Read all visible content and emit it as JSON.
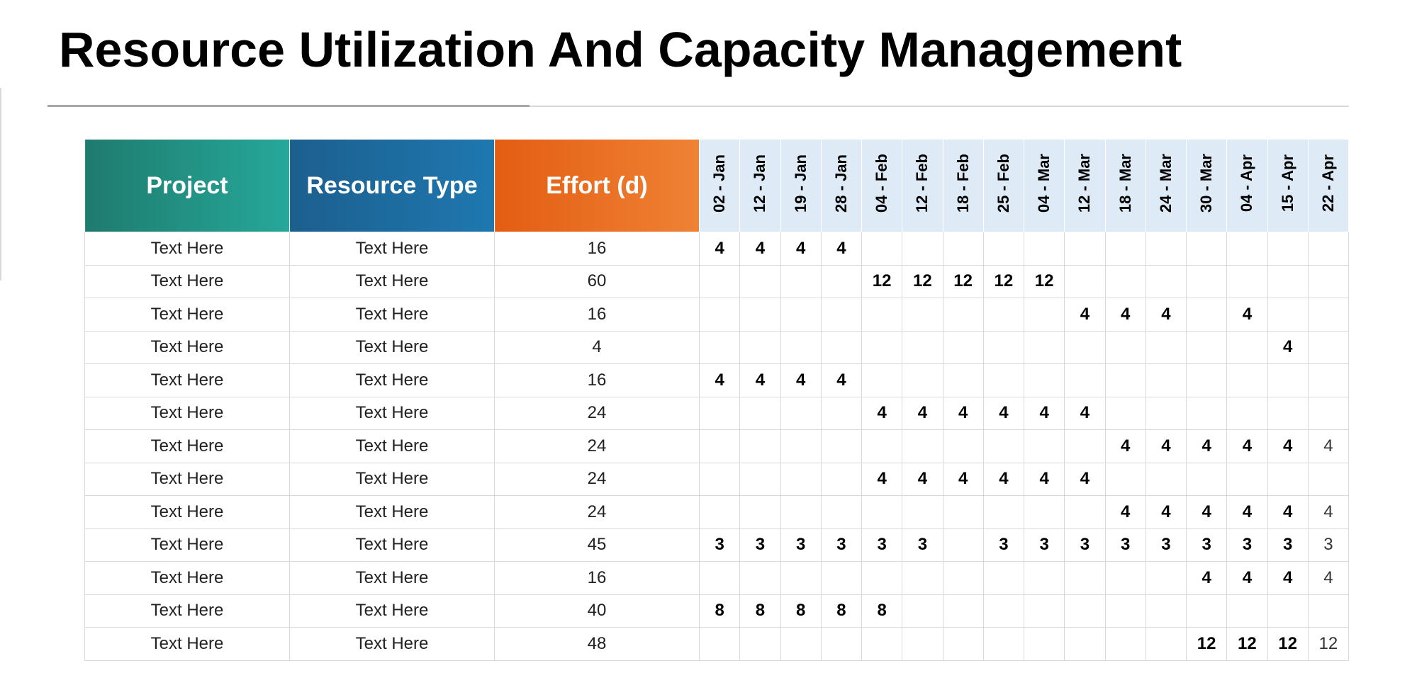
{
  "title": "Resource Utilization And Capacity Management",
  "table": {
    "headers": {
      "project": "Project",
      "resource_type": "Resource Type",
      "effort": "Effort (d)",
      "weeks": [
        "02 - Jan",
        "12 - Jan",
        "19 - Jan",
        "28 - Jan",
        "04 - Feb",
        "12 - Feb",
        "18 - Feb",
        "25 - Feb",
        "04 - Mar",
        "12 - Mar",
        "18 - Mar",
        "24 - Mar",
        "30 - Mar",
        "04 - Apr",
        "15 - Apr",
        "22 - Apr"
      ]
    },
    "rows": [
      {
        "project": "Text Here",
        "resource_type": "Text Here",
        "effort": 16,
        "weeks": [
          4,
          4,
          4,
          4,
          null,
          null,
          null,
          null,
          null,
          null,
          null,
          null,
          null,
          null,
          null,
          null
        ]
      },
      {
        "project": "Text Here",
        "resource_type": "Text Here",
        "effort": 60,
        "weeks": [
          null,
          null,
          null,
          null,
          12,
          12,
          12,
          12,
          12,
          null,
          null,
          null,
          null,
          null,
          null,
          null
        ]
      },
      {
        "project": "Text Here",
        "resource_type": "Text Here",
        "effort": 16,
        "weeks": [
          null,
          null,
          null,
          null,
          null,
          null,
          null,
          null,
          null,
          4,
          4,
          4,
          null,
          4,
          null,
          null
        ]
      },
      {
        "project": "Text Here",
        "resource_type": "Text Here",
        "effort": 4,
        "weeks": [
          null,
          null,
          null,
          null,
          null,
          null,
          null,
          null,
          null,
          null,
          null,
          null,
          null,
          null,
          4,
          null
        ]
      },
      {
        "project": "Text Here",
        "resource_type": "Text Here",
        "effort": 16,
        "weeks": [
          4,
          4,
          4,
          4,
          null,
          null,
          null,
          null,
          null,
          null,
          null,
          null,
          null,
          null,
          null,
          null
        ]
      },
      {
        "project": "Text Here",
        "resource_type": "Text Here",
        "effort": 24,
        "weeks": [
          null,
          null,
          null,
          null,
          4,
          4,
          4,
          4,
          4,
          4,
          null,
          null,
          null,
          null,
          null,
          null
        ]
      },
      {
        "project": "Text Here",
        "resource_type": "Text Here",
        "effort": 24,
        "weeks": [
          null,
          null,
          null,
          null,
          null,
          null,
          null,
          null,
          null,
          null,
          4,
          4,
          4,
          4,
          4,
          4
        ]
      },
      {
        "project": "Text Here",
        "resource_type": "Text Here",
        "effort": 24,
        "weeks": [
          null,
          null,
          null,
          null,
          4,
          4,
          4,
          4,
          4,
          4,
          null,
          null,
          null,
          null,
          null,
          null
        ]
      },
      {
        "project": "Text Here",
        "resource_type": "Text Here",
        "effort": 24,
        "weeks": [
          null,
          null,
          null,
          null,
          null,
          null,
          null,
          null,
          null,
          null,
          4,
          4,
          4,
          4,
          4,
          4
        ]
      },
      {
        "project": "Text Here",
        "resource_type": "Text Here",
        "effort": 45,
        "weeks": [
          3,
          3,
          3,
          3,
          3,
          3,
          null,
          3,
          3,
          3,
          3,
          3,
          3,
          3,
          3,
          3
        ]
      },
      {
        "project": "Text Here",
        "resource_type": "Text Here",
        "effort": 16,
        "weeks": [
          null,
          null,
          null,
          null,
          null,
          null,
          null,
          null,
          null,
          null,
          null,
          null,
          4,
          4,
          4,
          4
        ]
      },
      {
        "project": "Text Here",
        "resource_type": "Text Here",
        "effort": 40,
        "weeks": [
          8,
          8,
          8,
          8,
          8,
          null,
          null,
          null,
          null,
          null,
          null,
          null,
          null,
          null,
          null,
          null
        ]
      },
      {
        "project": "Text Here",
        "resource_type": "Text Here",
        "effort": 48,
        "weeks": [
          null,
          null,
          null,
          null,
          null,
          null,
          null,
          null,
          null,
          null,
          null,
          null,
          12,
          12,
          12,
          12
        ]
      }
    ]
  }
}
